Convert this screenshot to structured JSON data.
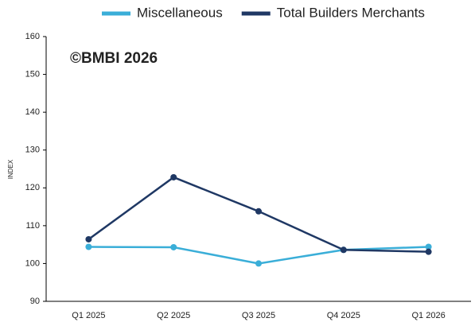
{
  "chart_data": {
    "type": "line",
    "categories": [
      "Q1 2025",
      "Q2 2025",
      "Q3 2025",
      "Q4 2025",
      "Q1 2026"
    ],
    "series": [
      {
        "name": "Miscellaneous",
        "color": "#3aaed8",
        "values": [
          104.4,
          104.3,
          100.0,
          103.6,
          104.4
        ]
      },
      {
        "name": "Total Builders Merchants",
        "color": "#1f3864",
        "values": [
          106.4,
          122.8,
          113.8,
          103.6,
          103.1
        ]
      }
    ],
    "y_label": "INDEX",
    "annotation": "©BMBI 2026",
    "ylim": [
      90,
      160
    ],
    "yticks": [
      90,
      100,
      110,
      120,
      130,
      140,
      150,
      160
    ],
    "grid": false,
    "legend": "top"
  }
}
